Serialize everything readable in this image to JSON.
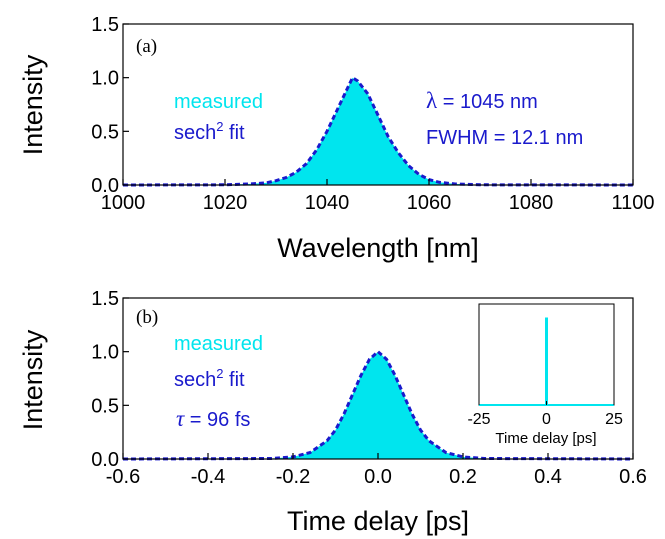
{
  "colors": {
    "fill": "#00e5ee",
    "fit": "#1a1acc",
    "measured_text": "#00e5ee",
    "annotation_text": "#1a1acc",
    "axis": "#000000"
  },
  "chart_data": [
    {
      "panel_label": "(a)",
      "type": "area",
      "xlabel": "Wavelength [nm]",
      "ylabel": "Intensity",
      "xlim": [
        1000,
        1100
      ],
      "ylim": [
        0,
        1.5
      ],
      "xticks": [
        "1000",
        "1020",
        "1040",
        "1060",
        "1080",
        "1100"
      ],
      "yticks": [
        "0.0",
        "0.5",
        "1.0",
        "1.5"
      ],
      "grid": false,
      "legend_position": "left",
      "series": [
        {
          "name": "measured",
          "style": "filled-area",
          "x": [
            1000,
            1020,
            1025,
            1028,
            1030,
            1032,
            1034,
            1036,
            1038,
            1040,
            1042,
            1044,
            1045,
            1046,
            1048,
            1050,
            1052,
            1054,
            1056,
            1058,
            1060,
            1062,
            1065,
            1070,
            1100
          ],
          "y": [
            0.0,
            0.002,
            0.01,
            0.02,
            0.04,
            0.07,
            0.12,
            0.2,
            0.33,
            0.5,
            0.7,
            0.9,
            1.0,
            0.97,
            0.85,
            0.65,
            0.45,
            0.3,
            0.18,
            0.1,
            0.05,
            0.025,
            0.01,
            0.002,
            0.0
          ]
        },
        {
          "name": "sech",
          "name_suffix": "2",
          "name_rest": " fit",
          "style": "dashed-line",
          "x": [
            1000,
            1020,
            1025,
            1028,
            1030,
            1032,
            1034,
            1036,
            1038,
            1040,
            1042,
            1044,
            1045,
            1046,
            1048,
            1050,
            1052,
            1054,
            1056,
            1058,
            1060,
            1062,
            1065,
            1070,
            1100
          ],
          "y": [
            0.0,
            0.002,
            0.01,
            0.02,
            0.04,
            0.07,
            0.12,
            0.2,
            0.33,
            0.5,
            0.7,
            0.9,
            1.0,
            0.97,
            0.85,
            0.65,
            0.45,
            0.3,
            0.18,
            0.1,
            0.05,
            0.025,
            0.01,
            0.002,
            0.0
          ]
        }
      ],
      "annotations": {
        "lambda_symbol": "λ",
        "lambda_value": " = 1045 nm",
        "fwhm": "FWHM = 12.1 nm"
      }
    },
    {
      "panel_label": "(b)",
      "type": "area",
      "xlabel": "Time delay [ps]",
      "ylabel": "Intensity",
      "xlim": [
        -0.6,
        0.6
      ],
      "ylim": [
        0,
        1.5
      ],
      "xticks": [
        "-0.6",
        "-0.4",
        "-0.2",
        "0.0",
        "0.2",
        "0.4",
        "0.6"
      ],
      "yticks": [
        "0.0",
        "0.5",
        "1.0",
        "1.5"
      ],
      "grid": false,
      "legend_position": "left",
      "series": [
        {
          "name": "measured",
          "style": "filled-area",
          "x": [
            -0.6,
            -0.25,
            -0.2,
            -0.16,
            -0.12,
            -0.1,
            -0.08,
            -0.06,
            -0.04,
            -0.02,
            0.0,
            0.02,
            0.04,
            0.06,
            0.08,
            0.1,
            0.12,
            0.16,
            0.2,
            0.25,
            0.6
          ],
          "y": [
            0.0,
            0.005,
            0.02,
            0.06,
            0.17,
            0.27,
            0.42,
            0.6,
            0.78,
            0.93,
            1.0,
            0.93,
            0.78,
            0.6,
            0.42,
            0.27,
            0.17,
            0.06,
            0.02,
            0.005,
            0.0
          ]
        },
        {
          "name": "sech",
          "name_suffix": "2",
          "name_rest": " fit",
          "style": "dashed-line",
          "x": [
            -0.6,
            -0.25,
            -0.2,
            -0.16,
            -0.12,
            -0.1,
            -0.08,
            -0.06,
            -0.04,
            -0.02,
            0.0,
            0.02,
            0.04,
            0.06,
            0.08,
            0.1,
            0.12,
            0.16,
            0.2,
            0.25,
            0.6
          ],
          "y": [
            0.0,
            0.005,
            0.02,
            0.06,
            0.17,
            0.27,
            0.42,
            0.6,
            0.78,
            0.93,
            1.0,
            0.93,
            0.78,
            0.6,
            0.42,
            0.27,
            0.17,
            0.06,
            0.02,
            0.005,
            0.0
          ]
        }
      ],
      "annotations": {
        "tau_symbol": "τ",
        "tau_value": " = 96 fs"
      },
      "inset": {
        "type": "line",
        "xlabel": "Time delay [ps]",
        "xlim": [
          -25,
          25
        ],
        "ylim": [
          0,
          1.5
        ],
        "xticks": [
          "-25",
          "0",
          "25"
        ],
        "spike_x": 0,
        "spike_height": 1.3
      }
    }
  ]
}
